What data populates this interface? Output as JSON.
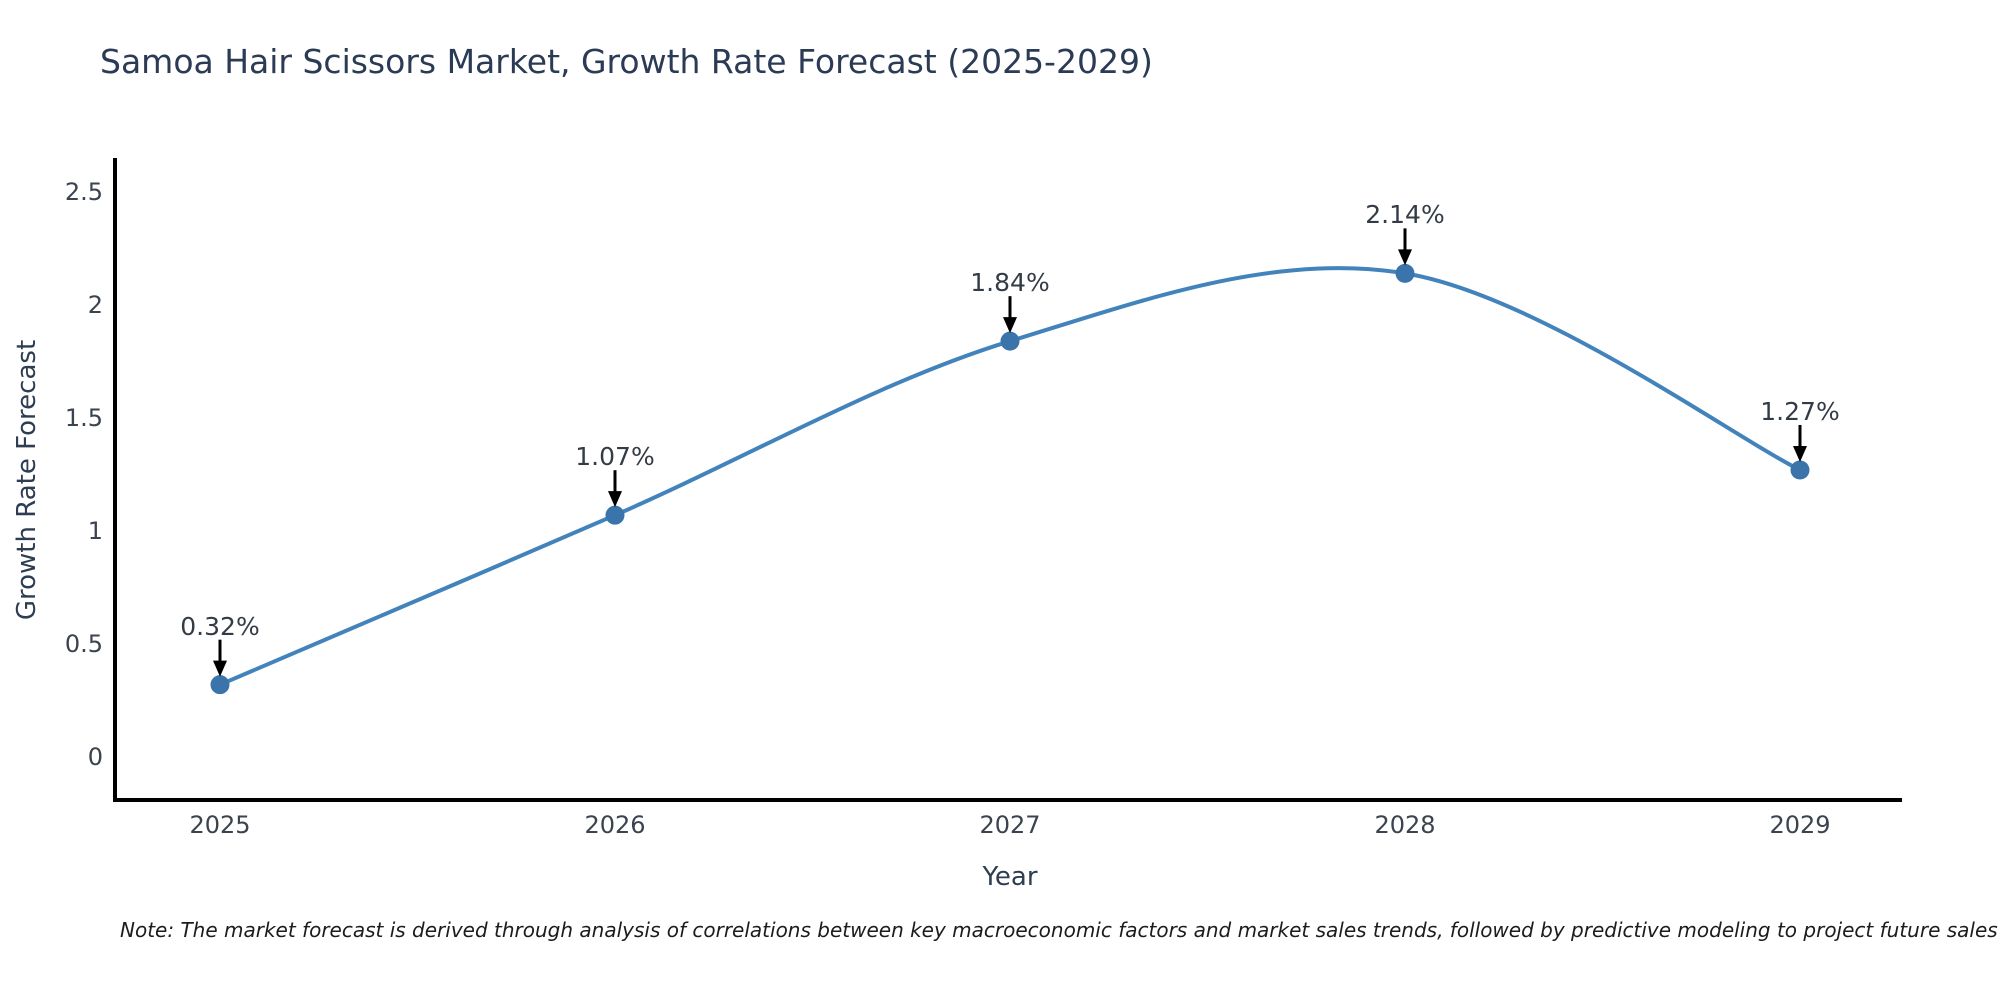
{
  "note": "Note: The market forecast is derived through analysis of correlations between key macroeconomic factors and market sales trends, followed by predictive modeling to project future sales",
  "chart_data": {
    "type": "line",
    "title": "Samoa Hair Scissors Market, Growth Rate Forecast (2025-2029)",
    "xlabel": "Year",
    "ylabel": "Growth Rate Forecast",
    "categories": [
      "2025",
      "2026",
      "2027",
      "2028",
      "2029"
    ],
    "values": [
      0.32,
      1.07,
      1.84,
      2.14,
      1.27
    ],
    "point_labels": [
      "0.32%",
      "1.07%",
      "1.84%",
      "2.14%",
      "1.27%"
    ],
    "yticks": [
      0,
      0.5,
      1,
      1.5,
      2,
      2.5
    ],
    "ytick_labels": [
      "0",
      "0.5",
      "1",
      "1.5",
      "2",
      "2.5"
    ],
    "ylim": [
      0,
      2.65
    ],
    "grid": false,
    "legend": false,
    "curve": "spline",
    "line_color": "#4383bb",
    "marker_color": "#3a74ab",
    "arrow_color": "#000000",
    "spine_color": "#000000"
  }
}
